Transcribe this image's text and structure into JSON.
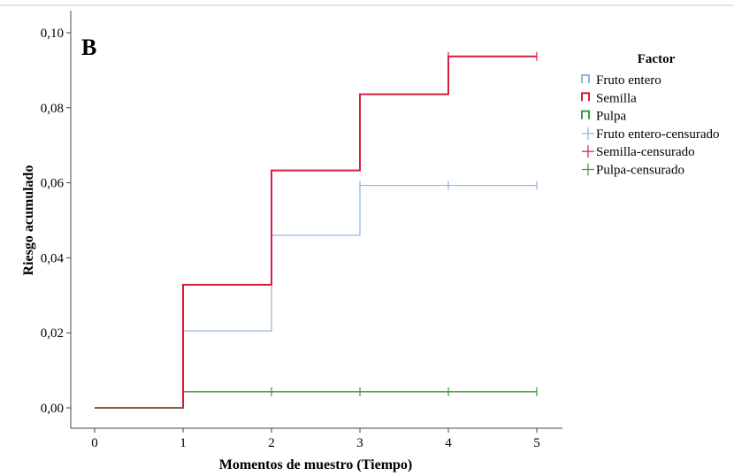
{
  "chart_data": {
    "type": "line",
    "step": true,
    "panel_label": "B",
    "xlabel": "Momentos de muestro (Tiempo)",
    "ylabel": "Riesgo acumulado",
    "xlim": [
      0,
      5
    ],
    "ylim": [
      0,
      0.1
    ],
    "x_ticks": [
      0,
      1,
      2,
      3,
      4,
      5
    ],
    "x_tick_labels": [
      "0",
      "1",
      "2",
      "3",
      "4",
      "5"
    ],
    "y_ticks": [
      0,
      0.02,
      0.04,
      0.06,
      0.08,
      0.1
    ],
    "y_tick_labels": [
      "0,00",
      "0,02",
      "0,04",
      "0,06",
      "0,08",
      "0,10"
    ],
    "grid": false,
    "legend": {
      "title": "Factor",
      "position": "right",
      "entries": [
        {
          "label": "Fruto entero",
          "kind": "step",
          "color": "#8cb4e2"
        },
        {
          "label": "Semilla",
          "kind": "step",
          "color": "#d81e41"
        },
        {
          "label": "Pulpa",
          "kind": "step",
          "color": "#3c963c"
        },
        {
          "label": "Fruto entero-censurado",
          "kind": "censor",
          "color": "#8cb4e2"
        },
        {
          "label": "Semilla-censurado",
          "kind": "censor",
          "color": "#d81e41"
        },
        {
          "label": "Pulpa-censurado",
          "kind": "censor",
          "color": "#3c963c"
        }
      ]
    },
    "series": [
      {
        "name": "Fruto entero",
        "color": "#8cb4e2",
        "x": [
          0,
          1,
          2,
          3,
          4,
          5
        ],
        "y": [
          0,
          0.0205,
          0.046,
          0.0593,
          0.0593,
          0.0593
        ],
        "censored": [
          [
            2,
            0.046
          ],
          [
            3,
            0.0593
          ],
          [
            4,
            0.0593
          ],
          [
            5,
            0.0593
          ]
        ]
      },
      {
        "name": "Semilla",
        "color": "#d81e41",
        "x": [
          0,
          1,
          2,
          3,
          4,
          5
        ],
        "y": [
          0,
          0.0328,
          0.0633,
          0.0836,
          0.0937,
          0.0937
        ],
        "censored": [
          [
            4,
            0.0937
          ],
          [
            5,
            0.0937
          ]
        ]
      },
      {
        "name": "Pulpa",
        "color": "#3c963c",
        "x": [
          0,
          1,
          2,
          3,
          4,
          5
        ],
        "y": [
          0,
          0.0043,
          0.0043,
          0.0043,
          0.0043,
          0.0043
        ],
        "censored": [
          [
            2,
            0.0043
          ],
          [
            3,
            0.0043
          ],
          [
            4,
            0.0043
          ],
          [
            5,
            0.0043
          ]
        ]
      }
    ],
    "baseline_overlap_color": "#8a5a4a"
  }
}
